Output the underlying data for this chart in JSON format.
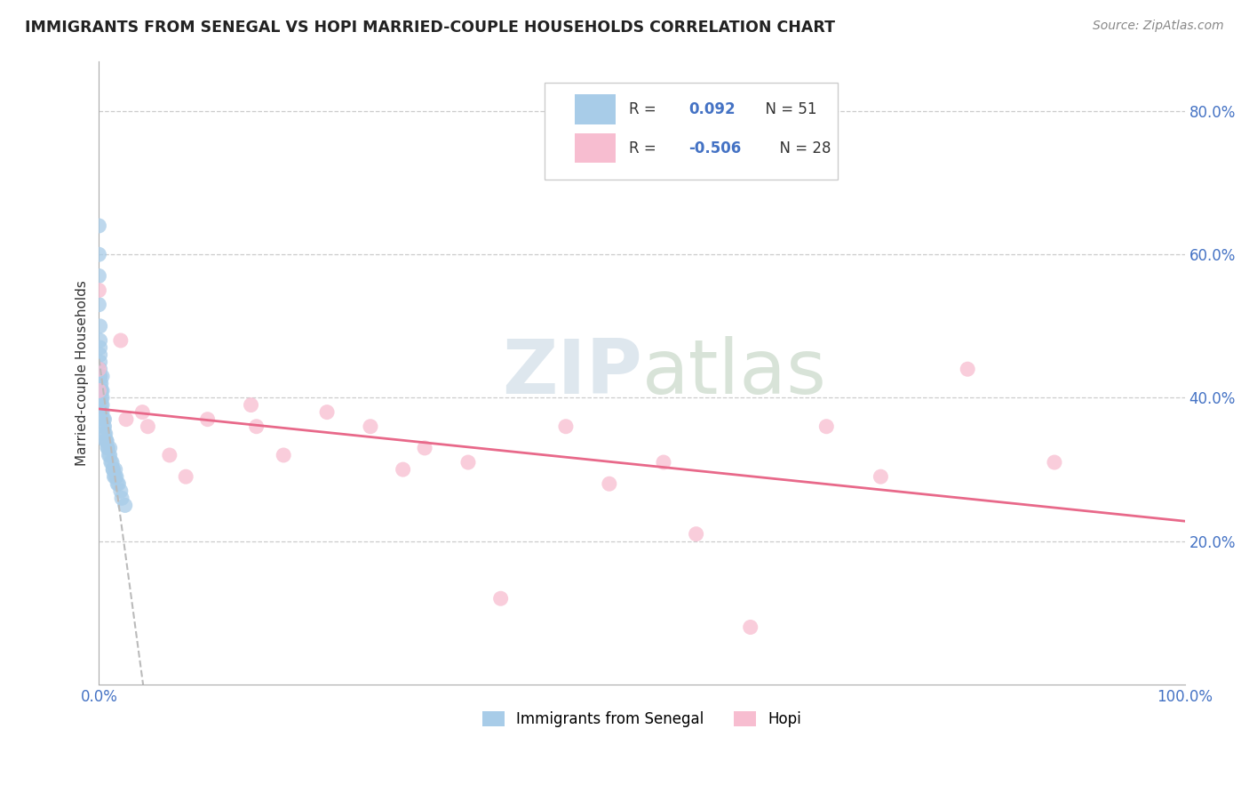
{
  "title": "IMMIGRANTS FROM SENEGAL VS HOPI MARRIED-COUPLE HOUSEHOLDS CORRELATION CHART",
  "source": "Source: ZipAtlas.com",
  "ylabel": "Married-couple Households",
  "xlim": [
    0.0,
    1.0
  ],
  "ylim": [
    0.0,
    0.87
  ],
  "yticks": [
    0.2,
    0.4,
    0.6,
    0.8
  ],
  "ytick_labels": [
    "20.0%",
    "40.0%",
    "60.0%",
    "80.0%"
  ],
  "xtick_labels": [
    "0.0%",
    "100.0%"
  ],
  "blue_color": "#a8cce8",
  "pink_color": "#f7bdd0",
  "blue_line_color": "#aaaacc",
  "pink_line_color": "#e8698a",
  "watermark_color": "#d8e8f0",
  "background_color": "#ffffff",
  "grid_color": "#cccccc",
  "tick_label_color": "#4472c4",
  "senegal_x": [
    0.0,
    0.0,
    0.0,
    0.0,
    0.001,
    0.001,
    0.001,
    0.001,
    0.001,
    0.001,
    0.001,
    0.001,
    0.001,
    0.002,
    0.002,
    0.002,
    0.002,
    0.002,
    0.002,
    0.003,
    0.003,
    0.003,
    0.003,
    0.003,
    0.004,
    0.004,
    0.005,
    0.005,
    0.005,
    0.006,
    0.006,
    0.007,
    0.007,
    0.008,
    0.008,
    0.009,
    0.01,
    0.01,
    0.011,
    0.012,
    0.013,
    0.013,
    0.014,
    0.015,
    0.015,
    0.016,
    0.017,
    0.018,
    0.02,
    0.021,
    0.024
  ],
  "senegal_y": [
    0.64,
    0.6,
    0.57,
    0.53,
    0.5,
    0.48,
    0.47,
    0.46,
    0.45,
    0.44,
    0.43,
    0.43,
    0.42,
    0.42,
    0.41,
    0.41,
    0.4,
    0.39,
    0.38,
    0.43,
    0.41,
    0.4,
    0.39,
    0.38,
    0.37,
    0.36,
    0.37,
    0.36,
    0.35,
    0.35,
    0.34,
    0.34,
    0.34,
    0.33,
    0.33,
    0.32,
    0.33,
    0.32,
    0.31,
    0.31,
    0.3,
    0.3,
    0.29,
    0.3,
    0.29,
    0.29,
    0.28,
    0.28,
    0.27,
    0.26,
    0.25
  ],
  "hopi_x": [
    0.0,
    0.0,
    0.0,
    0.02,
    0.025,
    0.04,
    0.045,
    0.065,
    0.08,
    0.1,
    0.14,
    0.145,
    0.17,
    0.21,
    0.25,
    0.28,
    0.3,
    0.34,
    0.37,
    0.43,
    0.47,
    0.52,
    0.55,
    0.6,
    0.67,
    0.72,
    0.8,
    0.88
  ],
  "hopi_y": [
    0.55,
    0.44,
    0.41,
    0.48,
    0.37,
    0.38,
    0.36,
    0.32,
    0.29,
    0.37,
    0.39,
    0.36,
    0.32,
    0.38,
    0.36,
    0.3,
    0.33,
    0.31,
    0.12,
    0.36,
    0.28,
    0.31,
    0.21,
    0.08,
    0.36,
    0.29,
    0.44,
    0.31
  ]
}
